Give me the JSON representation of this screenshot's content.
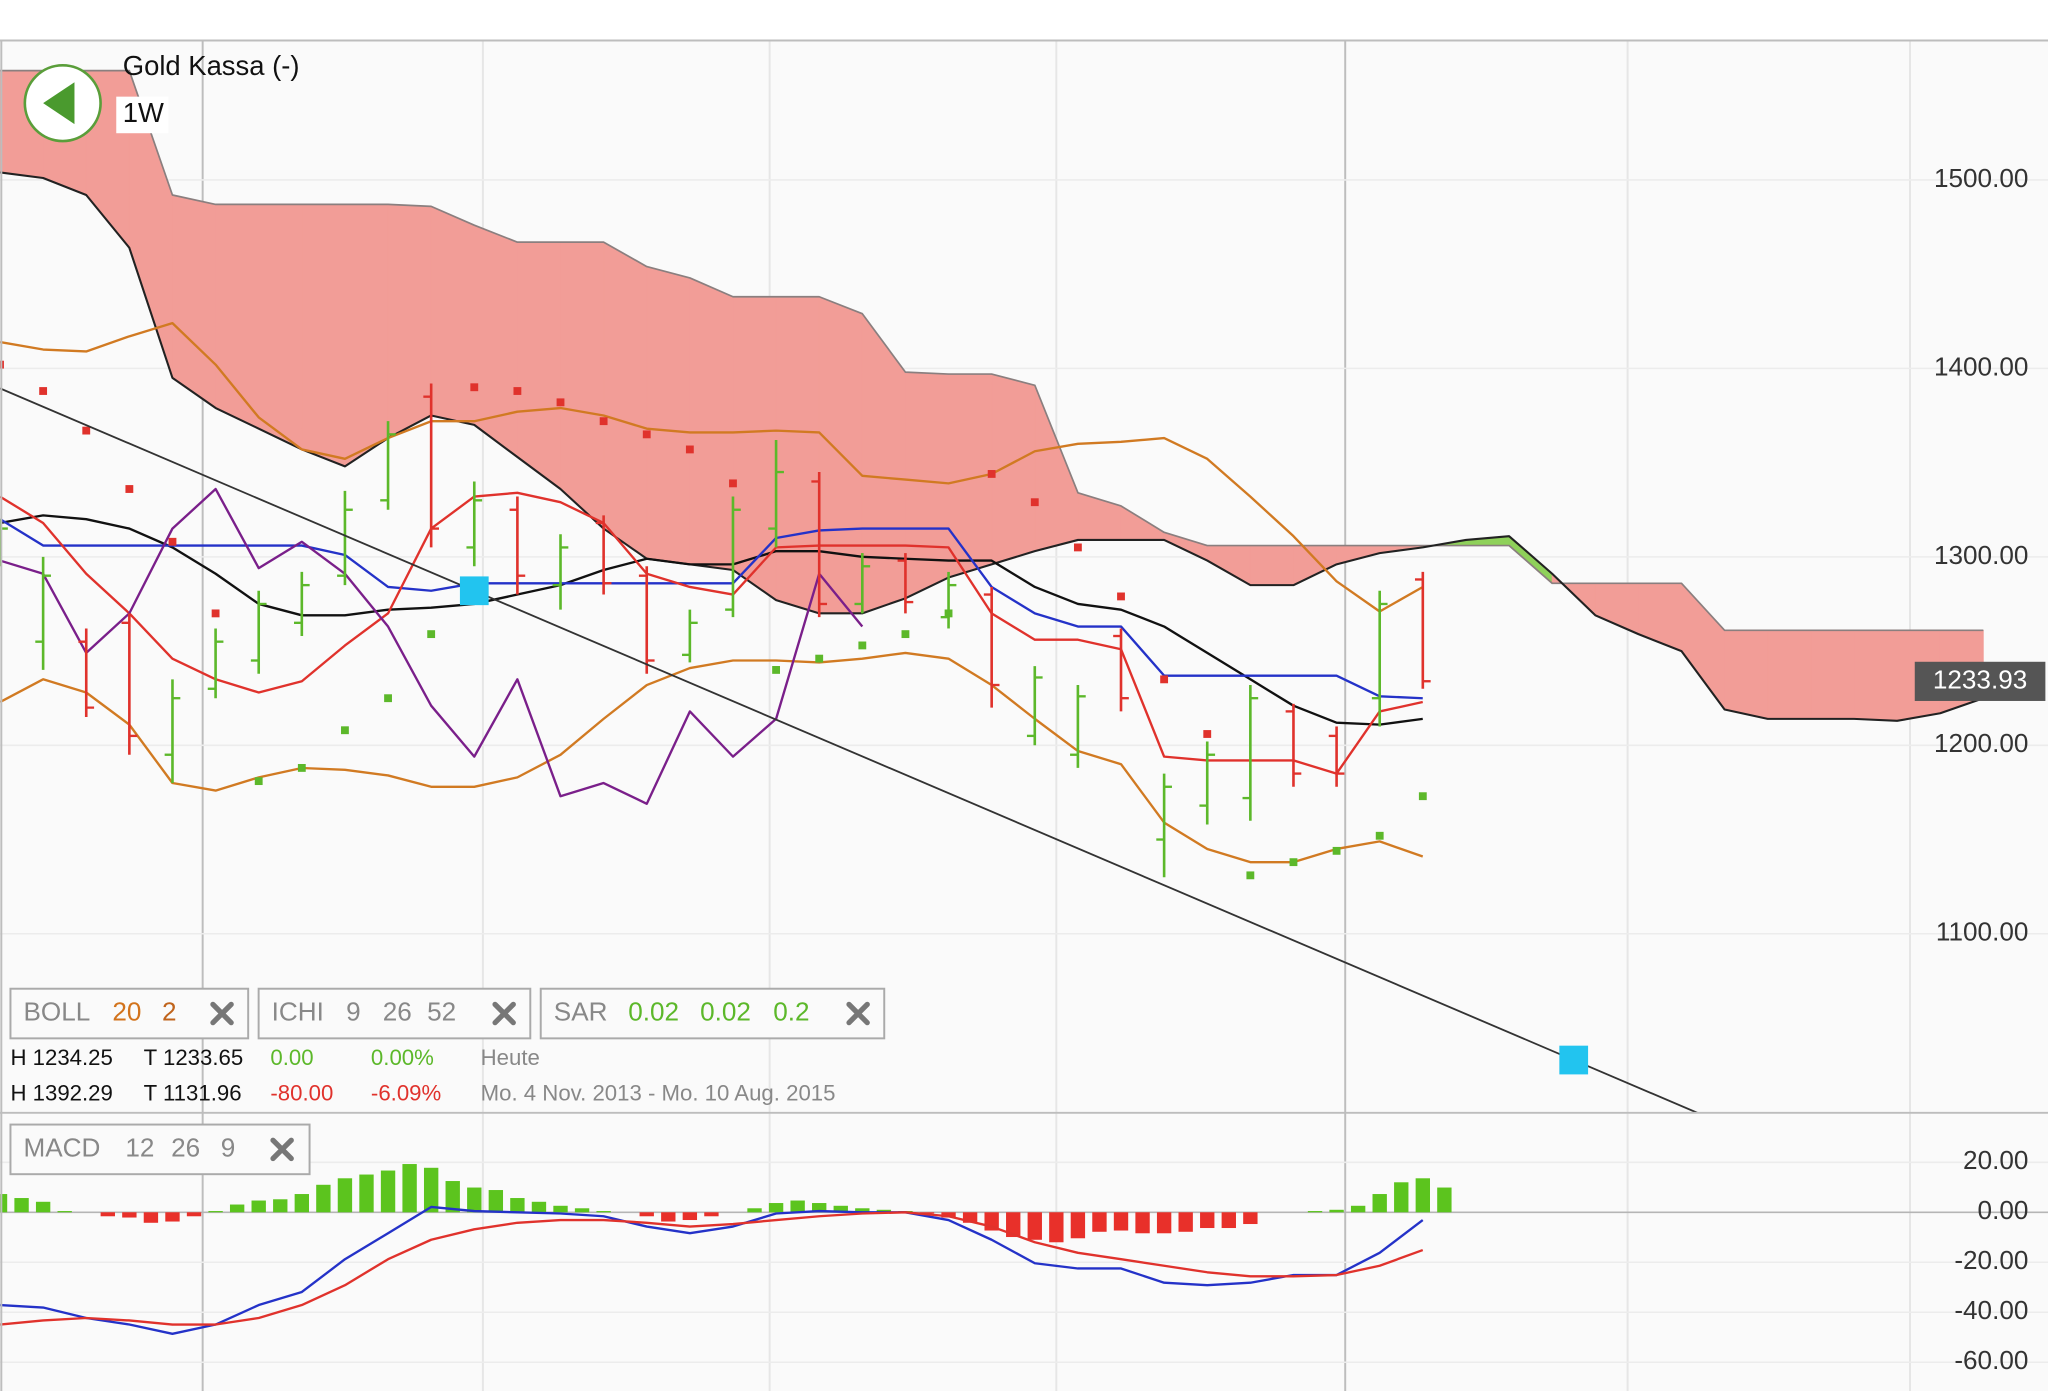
{
  "header": {
    "title": "Gold Kassa (-)",
    "timeframe": "1W"
  },
  "indicators": [
    {
      "name": "BOLL",
      "params": [
        "20",
        "2"
      ]
    },
    {
      "name": "ICHI",
      "params": [
        "9",
        "26",
        "52"
      ]
    },
    {
      "name": "SAR",
      "params": [
        "0.02",
        "0.02",
        "0.2"
      ]
    },
    {
      "name": "MACD",
      "params": [
        "12",
        "26",
        "9"
      ]
    }
  ],
  "stats": [
    [
      "H 1234.25",
      "T 1233.65",
      "0.00",
      "0.00%",
      "Heute"
    ],
    [
      "H 1392.29",
      "T 1131.96",
      "-80.00",
      "-6.09%",
      "Mo. 4 Nov. 2013 - Mo. 10 Aug. 2015"
    ]
  ],
  "chart_data": [
    {
      "type": "ichimoku",
      "xlim": [
        0,
        95
      ],
      "xticks": [
        9.4,
        22.4,
        35.7,
        49,
        62.4,
        75.5,
        88.6
      ],
      "xtick_major": [
        true,
        false,
        false,
        false,
        true,
        false,
        false
      ],
      "ylim": [
        1005,
        1574
      ],
      "yticks": [
        {
          "value": 1100,
          "label": "1100.00"
        },
        {
          "value": 1200,
          "label": "1200.00"
        },
        {
          "value": 1300,
          "label": "1300.00"
        },
        {
          "value": 1400,
          "label": "1400.00"
        },
        {
          "value": 1500,
          "label": "1500.00"
        }
      ],
      "grid": true,
      "last_price": {
        "value": 1233.93,
        "label": "1233.93"
      },
      "cloud": {
        "x": [
          0,
          2,
          4,
          6,
          8,
          10,
          12,
          14,
          16,
          18,
          20,
          22,
          24,
          26,
          28,
          30,
          32,
          34,
          36,
          38,
          40,
          42,
          44,
          46,
          48,
          50,
          52,
          54,
          56,
          58,
          60,
          62,
          64,
          66,
          68,
          70,
          72,
          74,
          76,
          78,
          80,
          82,
          84,
          86,
          88,
          90,
          92
        ],
        "span_a": [
          1504,
          1501,
          1492,
          1464,
          1395,
          1379,
          1368,
          1357,
          1348,
          1363,
          1375,
          1370,
          1353,
          1336,
          1315,
          1299,
          1296,
          1293,
          1277,
          1270,
          1270,
          1278,
          1289,
          1296,
          1303,
          1309,
          1309,
          1309,
          1298,
          1285,
          1285,
          1296,
          1302,
          1305,
          1309,
          1311,
          1291,
          1269,
          1259,
          1250,
          1219,
          1214,
          1214,
          1214,
          1213,
          1217,
          1225
        ],
        "span_b": [
          1558,
          1558,
          1558,
          1558,
          1492,
          1487,
          1487,
          1487,
          1487,
          1487,
          1486,
          1476,
          1467,
          1467,
          1467,
          1454,
          1448,
          1438,
          1438,
          1438,
          1429,
          1398,
          1397,
          1397,
          1391,
          1334,
          1327,
          1313,
          1306,
          1306,
          1306,
          1306,
          1306,
          1306,
          1306,
          1306,
          1286,
          1286,
          1286,
          1286,
          1261,
          1261,
          1261,
          1261,
          1261,
          1261,
          1261
        ],
        "up_color": "#8fd15a",
        "down_color": "#f29d97",
        "a_edge_color": "#222222",
        "b_edge_color": "#8a7f7f"
      },
      "x": [
        0,
        2,
        4,
        6,
        8,
        10,
        12,
        14,
        16,
        18,
        20,
        22,
        24,
        26,
        28,
        30,
        32,
        34,
        36,
        38,
        40,
        42,
        44,
        46,
        48,
        50,
        52,
        54,
        56,
        58,
        60,
        62,
        64,
        66
      ],
      "ohlc": {
        "open": [
          1300,
          1255,
          1255,
          1265,
          1195,
          1230,
          1245,
          1265,
          1290,
          1330,
          1385,
          1305,
          1325,
          1285,
          1318,
          1290,
          1248,
          1272,
          1315,
          1340,
          1275,
          1298,
          1268,
          1280,
          1205,
          1195,
          1258,
          1150,
          1168,
          1172,
          1218,
          1205,
          1225,
          1288
        ],
        "high": [
          1320,
          1300,
          1262,
          1270,
          1235,
          1262,
          1282,
          1292,
          1335,
          1372,
          1392,
          1340,
          1332,
          1312,
          1322,
          1295,
          1272,
          1332,
          1362,
          1345,
          1302,
          1302,
          1292,
          1284,
          1242,
          1232,
          1262,
          1185,
          1202,
          1232,
          1222,
          1210,
          1282,
          1292
        ],
        "low": [
          1295,
          1240,
          1215,
          1195,
          1180,
          1225,
          1238,
          1258,
          1285,
          1325,
          1305,
          1295,
          1280,
          1272,
          1280,
          1238,
          1244,
          1268,
          1305,
          1268,
          1270,
          1270,
          1262,
          1220,
          1200,
          1188,
          1218,
          1130,
          1158,
          1160,
          1178,
          1178,
          1210,
          1230
        ],
        "close": [
          1315,
          1290,
          1220,
          1205,
          1225,
          1255,
          1275,
          1285,
          1325,
          1365,
          1315,
          1330,
          1290,
          1305,
          1286,
          1245,
          1265,
          1325,
          1345,
          1275,
          1295,
          1276,
          1285,
          1232,
          1236,
          1226,
          1225,
          1178,
          1195,
          1225,
          1185,
          1185,
          1275,
          1234
        ],
        "up_color": "#5cb82a",
        "down_color": "#e0322c"
      },
      "lines": [
        {
          "color": "#111111",
          "values": [
            1318,
            1322,
            1320,
            1315,
            1305,
            1291,
            1275,
            1269,
            1269,
            1272,
            1273,
            1275,
            1280,
            1285,
            1293,
            1299,
            1296,
            1296,
            1303,
            1303,
            1300,
            1299,
            1298,
            1298,
            1284,
            1275,
            1272,
            1263,
            1249,
            1235,
            1221,
            1212,
            1211,
            1214
          ]
        },
        {
          "color": "#2432c8",
          "values": [
            1320,
            1306,
            1306,
            1306,
            1306,
            1306,
            1306,
            1306,
            1301,
            1284,
            1282,
            1286,
            1286,
            1286,
            1286,
            1286,
            1286,
            1286,
            1310,
            1314,
            1315,
            1315,
            1315,
            1284,
            1270,
            1263,
            1263,
            1237,
            1237,
            1237,
            1237,
            1237,
            1226,
            1225
          ]
        },
        {
          "color": "#d17a22",
          "values": [
            1414,
            1410,
            1409,
            1417,
            1424,
            1402,
            1374,
            1357,
            1352,
            1363,
            1372,
            1372,
            1377,
            1379,
            1375,
            1368,
            1366,
            1366,
            1367,
            1366,
            1343,
            1341,
            1339,
            1344,
            1356,
            1360,
            1361,
            1363,
            1352,
            1332,
            1311,
            1287,
            1271,
            1284
          ]
        },
        {
          "color": "#e0322c",
          "values": [
            1332,
            1318,
            1291,
            1270,
            1246,
            1235,
            1228,
            1234,
            1253,
            1270,
            1315,
            1332,
            1334,
            1329,
            1318,
            1291,
            1284,
            1280,
            1305,
            1306,
            1306,
            1306,
            1305,
            1270,
            1256,
            1256,
            1251,
            1194,
            1192,
            1192,
            1192,
            1185,
            1218,
            1223
          ]
        },
        {
          "color": "#d17a22",
          "values": [
            1223,
            1235,
            1228,
            1211,
            1180,
            1176,
            1183,
            1188,
            1187,
            1184,
            1178,
            1178,
            1183,
            1195,
            1214,
            1232,
            1241,
            1245,
            1245,
            1244,
            1246,
            1249,
            1246,
            1232,
            1214,
            1197,
            1190,
            1159,
            1145,
            1138,
            1138,
            1145,
            1149,
            1141
          ]
        },
        {
          "color": "#7a1f8a",
          "values": [
            1298,
            1291,
            1249,
            1270,
            1315,
            1336,
            1294,
            1308,
            1291,
            1263,
            1221,
            1194,
            1235,
            1173,
            1180,
            1169,
            1218,
            1194,
            1214,
            1291,
            1263,
            null,
            null,
            null,
            null,
            null,
            null,
            null,
            null,
            null,
            null,
            null,
            null,
            null
          ]
        }
      ],
      "sar": {
        "values": [
          1402,
          1388,
          1367,
          1336,
          1308,
          1270,
          1181,
          1188,
          1208,
          1225,
          1259,
          1390,
          1388,
          1382,
          1372,
          1365,
          1357,
          1339,
          1240,
          1246,
          1253,
          1259,
          1270,
          1344,
          1329,
          1305,
          1279,
          1235,
          1206,
          1131,
          1138,
          1144,
          1152,
          1173
        ],
        "up_color": "#5cb82a",
        "down_color": "#e0322c"
      },
      "trendline": {
        "x": [
          22,
          73
        ],
        "values": [
          1282,
          1033
        ],
        "color": "#333333",
        "handle_color": "#22c4ef"
      }
    },
    {
      "type": "macd",
      "xlim": [
        0,
        95
      ],
      "ylim": [
        -71.5,
        39.8
      ],
      "yticks": [
        {
          "value": -60,
          "label": "-60.00"
        },
        {
          "value": -40,
          "label": "-40.00"
        },
        {
          "value": -20,
          "label": "-20.00"
        },
        {
          "value": 0,
          "label": "0.00"
        },
        {
          "value": 20,
          "label": "20.00"
        }
      ],
      "grid": true,
      "histogram": {
        "x": [
          0,
          1,
          2,
          3,
          4,
          5,
          6,
          7,
          8,
          9,
          10,
          11,
          12,
          13,
          14,
          15,
          16,
          17,
          18,
          19,
          20,
          21,
          22,
          23,
          24,
          25,
          26,
          27,
          28,
          29,
          30,
          31,
          32,
          33,
          34,
          35,
          36,
          37,
          38,
          39,
          40,
          41,
          42,
          43,
          44,
          45,
          46,
          47,
          48,
          49,
          50,
          51,
          52,
          53,
          54,
          55,
          56,
          57,
          58,
          59,
          60,
          61,
          62,
          63,
          64,
          65,
          66,
          67
        ],
        "values": [
          7.3,
          5.7,
          4.2,
          0.5,
          0,
          -1.6,
          -2.1,
          -4.2,
          -3.7,
          -1.6,
          0.5,
          3.1,
          4.7,
          5.2,
          7.3,
          11,
          13.6,
          15.1,
          16.7,
          19.3,
          17.8,
          12.5,
          9.9,
          8.9,
          5.7,
          4.2,
          2.6,
          1.6,
          0.5,
          0,
          -1.6,
          -3.7,
          -3.1,
          -1.6,
          0,
          1.6,
          3.7,
          4.7,
          3.7,
          2.6,
          1.6,
          1.0,
          0.5,
          -0.5,
          -2.1,
          -4.2,
          -7.3,
          -9.9,
          -11,
          -12,
          -10.4,
          -7.8,
          -7.3,
          -8.4,
          -8.4,
          -7.8,
          -6.3,
          -6.3,
          -4.7,
          0,
          0,
          0.5,
          1.0,
          2.6,
          7.3,
          12,
          13.6,
          9.9
        ],
        "up_color": "#5cc41e",
        "down_color": "#e8302a"
      },
      "x": [
        0,
        2,
        4,
        6,
        8,
        10,
        12,
        14,
        16,
        18,
        20,
        22,
        24,
        26,
        28,
        30,
        32,
        34,
        36,
        38,
        40,
        42,
        44,
        46,
        48,
        50,
        52,
        54,
        56,
        58,
        60,
        62,
        64,
        66
      ],
      "lines": [
        {
          "color": "#2432c8",
          "values": [
            -37.1,
            -38.1,
            -42.3,
            -44.9,
            -48.6,
            -44.9,
            -37.1,
            -31.9,
            -18.8,
            -8.4,
            2.1,
            0.5,
            0,
            -0.5,
            -1.6,
            -5.7,
            -8.4,
            -5.7,
            -0.5,
            0.5,
            0,
            0,
            -3.1,
            -11.0,
            -20.4,
            -22.5,
            -22.5,
            -28.2,
            -29.2,
            -28.2,
            -25.1,
            -25.1,
            -16.2,
            -3.1
          ]
        },
        {
          "color": "#e0322c",
          "values": [
            -44.9,
            -43.3,
            -42.3,
            -43.3,
            -44.9,
            -44.9,
            -42.3,
            -37.1,
            -29.2,
            -18.8,
            -11.0,
            -6.8,
            -4.2,
            -3.1,
            -3.1,
            -4.2,
            -5.7,
            -4.7,
            -3.1,
            -1.6,
            -0.5,
            0,
            -1.6,
            -5.7,
            -12.0,
            -16.2,
            -18.8,
            -21.4,
            -24.0,
            -25.6,
            -25.6,
            -25.1,
            -21.4,
            -15.1
          ]
        }
      ]
    }
  ]
}
